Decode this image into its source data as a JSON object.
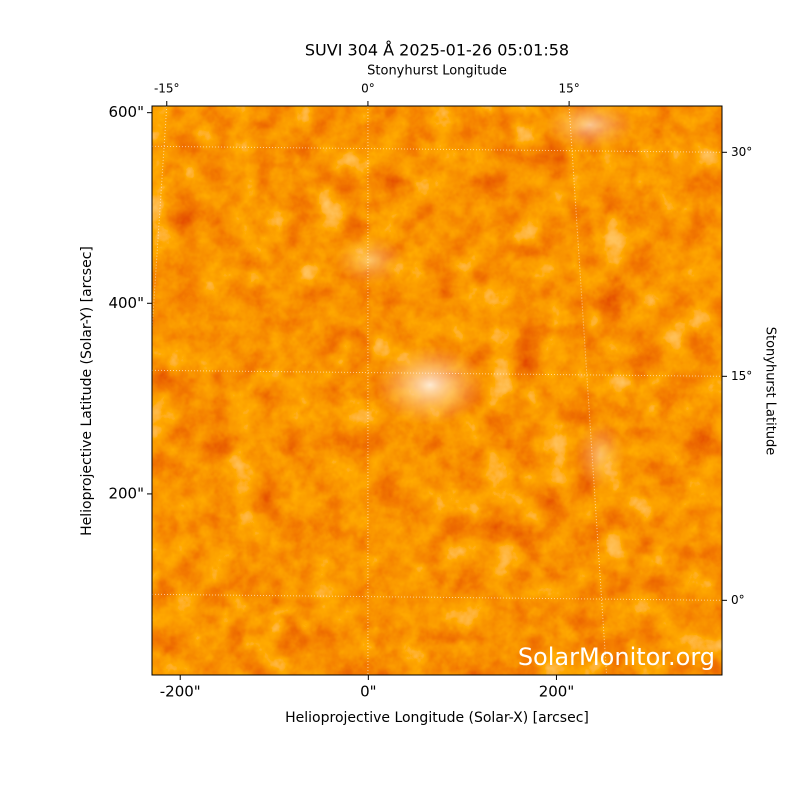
{
  "chart_data": {
    "type": "image",
    "title": "SUVI 304 Å 2025-01-26 05:01:58",
    "xlabel": "Helioprojective Longitude (Solar-X) [arcsec]",
    "ylabel": "Helioprojective Latitude (Solar-Y) [arcsec]",
    "x2label": "Stonyhurst Longitude",
    "y2label": "Stonyhurst Latitude",
    "watermark": "SolarMonitor.org",
    "xlim": [
      -230,
      376
    ],
    "ylim": [
      10,
      607
    ],
    "xticks": [
      {
        "value": -200,
        "label": "-200\""
      },
      {
        "value": 0,
        "label": "0\""
      },
      {
        "value": 200,
        "label": "200\""
      }
    ],
    "yticks": [
      {
        "value": 200,
        "label": "200\""
      },
      {
        "value": 400,
        "label": "400\""
      },
      {
        "value": 600,
        "label": "600\""
      }
    ],
    "x2lim": [
      -16.1,
      26.4
    ],
    "y2lim": [
      -5,
      33.1
    ],
    "x2ticks": [
      {
        "value": -15,
        "label": "-15°"
      },
      {
        "value": 0,
        "label": "0°"
      },
      {
        "value": 15,
        "label": "15°"
      }
    ],
    "y2ticks": [
      {
        "value": 0,
        "label": "0°"
      },
      {
        "value": 15,
        "label": "15°"
      },
      {
        "value": 30,
        "label": "30°"
      }
    ],
    "grid": true
  }
}
